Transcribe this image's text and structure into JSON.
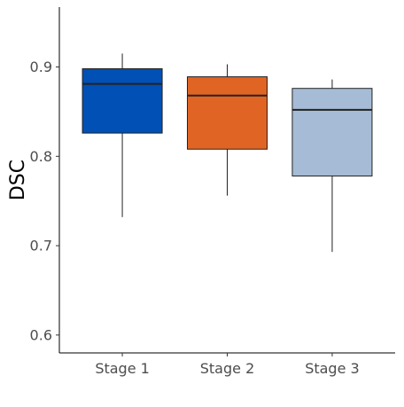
{
  "chart_data": {
    "type": "box",
    "title": "",
    "xlabel": "",
    "ylabel": "DSC",
    "ylim": [
      0.58,
      0.967
    ],
    "yticks": [
      0.6,
      0.7,
      0.8,
      0.9
    ],
    "ytick_labels": [
      "0.6",
      "0.7",
      "0.8",
      "0.9"
    ],
    "grid": false,
    "legend": "none",
    "categories": [
      "Stage 1",
      "Stage 2",
      "Stage 3"
    ],
    "boxes": [
      {
        "category": "Stage 1",
        "min": 0.732,
        "q1": 0.826,
        "median": 0.881,
        "q3": 0.898,
        "max": 0.915,
        "color": "#0050B5"
      },
      {
        "category": "Stage 2",
        "min": 0.756,
        "q1": 0.808,
        "median": 0.868,
        "q3": 0.889,
        "max": 0.903,
        "color": "#E06423"
      },
      {
        "category": "Stage 3",
        "min": 0.693,
        "q1": 0.778,
        "median": 0.852,
        "q3": 0.876,
        "max": 0.886,
        "color": "#A6BCD6"
      }
    ]
  }
}
